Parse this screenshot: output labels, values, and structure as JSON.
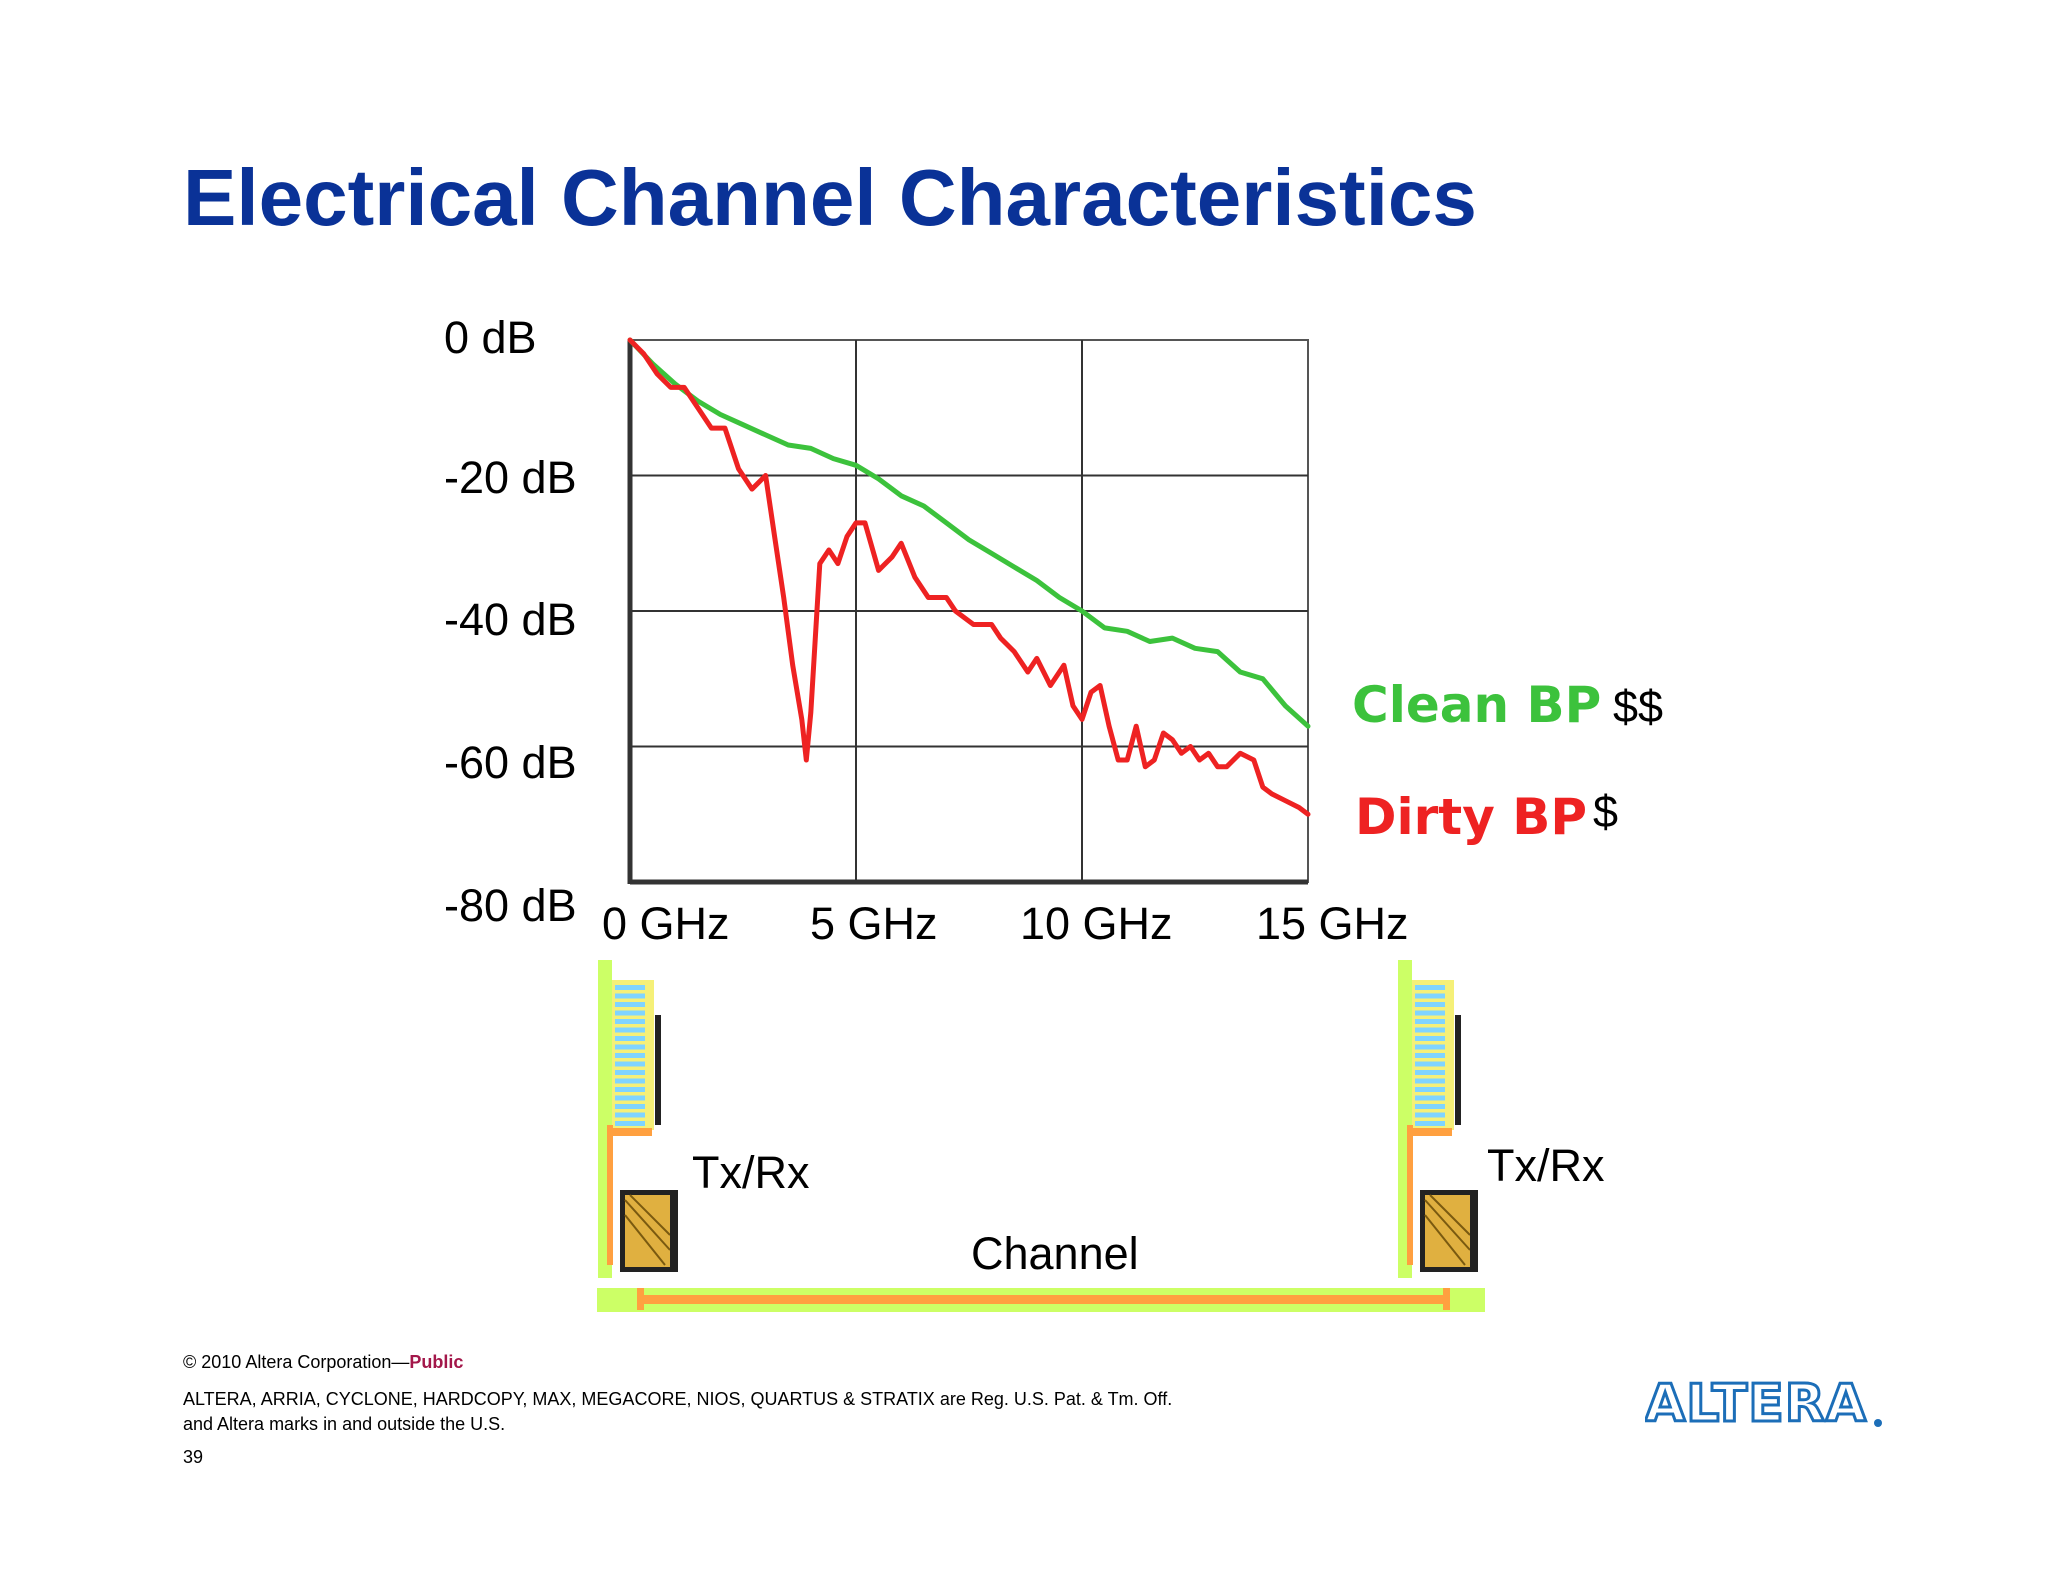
{
  "slide": {
    "title": "Electrical Channel Characteristics",
    "page_number": "39"
  },
  "chart_data": {
    "type": "line",
    "title": "",
    "xlabel": "",
    "ylabel": "",
    "x_unit": "GHz",
    "y_unit": "dB",
    "xlim": [
      0,
      15
    ],
    "ylim": [
      -80,
      0
    ],
    "x_ticks": [
      0,
      5,
      10,
      15
    ],
    "y_ticks": [
      0,
      -20,
      -40,
      -60,
      -80
    ],
    "x_tick_labels": [
      "0 GHz",
      "5 GHz",
      "10 GHz",
      "15 GHz"
    ],
    "y_tick_labels": [
      "0 dB",
      "-20 dB",
      "-40 dB",
      "-60 dB",
      "-80 dB"
    ],
    "grid": true,
    "legend_position": "right",
    "series": [
      {
        "name": "Clean BP",
        "annotation": "$$",
        "color": "#3cc23c",
        "x": [
          0,
          0.5,
          1,
          1.5,
          2,
          2.5,
          3,
          3.5,
          4,
          4.5,
          5,
          5.5,
          6,
          6.5,
          7,
          7.5,
          8,
          8.5,
          9,
          9.5,
          10,
          10.5,
          11,
          11.5,
          12,
          12.5,
          13,
          13.5,
          14,
          14.5,
          15
        ],
        "y": [
          0,
          -3.5,
          -6.5,
          -9,
          -11,
          -12.5,
          -14,
          -15.5,
          -16,
          -17.5,
          -18.5,
          -20.5,
          -23,
          -24.5,
          -27,
          -29.5,
          -31.5,
          -33.5,
          -35.5,
          -38,
          -40,
          -42.5,
          -43,
          -44.5,
          -44,
          -45.5,
          -46,
          -49,
          -50,
          -54,
          -57
        ]
      },
      {
        "name": "Dirty BP",
        "annotation": "$",
        "color": "#ee2222",
        "x": [
          0,
          0.3,
          0.6,
          0.9,
          1.2,
          1.5,
          1.8,
          2.1,
          2.4,
          2.7,
          3.0,
          3.2,
          3.4,
          3.6,
          3.8,
          3.9,
          4.0,
          4.1,
          4.2,
          4.4,
          4.6,
          4.8,
          5.0,
          5.2,
          5.5,
          5.8,
          6.0,
          6.3,
          6.6,
          7.0,
          7.2,
          7.6,
          8.0,
          8.2,
          8.5,
          8.8,
          9.0,
          9.3,
          9.6,
          9.8,
          10.0,
          10.2,
          10.4,
          10.6,
          10.8,
          11.0,
          11.2,
          11.4,
          11.6,
          11.8,
          12.0,
          12.2,
          12.4,
          12.6,
          12.8,
          13.0,
          13.2,
          13.5,
          13.8,
          14.0,
          14.2,
          14.5,
          14.8,
          15
        ],
        "y": [
          0,
          -2,
          -5,
          -7,
          -7,
          -10,
          -13,
          -13,
          -19,
          -22,
          -20,
          -29,
          -38,
          -48,
          -56,
          -62,
          -55,
          -44,
          -33,
          -31,
          -33,
          -29,
          -27,
          -27,
          -34,
          -32,
          -30,
          -35,
          -38,
          -38,
          -40,
          -42,
          -42,
          -44,
          -46,
          -49,
          -47,
          -51,
          -48,
          -54,
          -56,
          -52,
          -51,
          -57,
          -62,
          -62,
          -57,
          -63,
          -62,
          -58,
          -59,
          -61,
          -60,
          -62,
          -61,
          -63,
          -63,
          -61,
          -62,
          -66,
          -67,
          -68,
          -69,
          -70
        ]
      }
    ]
  },
  "diagram": {
    "left_label": "Tx/Rx",
    "right_label": "Tx/Rx",
    "channel_label": "Channel",
    "colors": {
      "board": "#ccff66",
      "trace": "#ffa040",
      "connector": "#7fd4ff",
      "chip": "#e0b040"
    }
  },
  "footer": {
    "copyright": "© 2010 Altera Corporation—",
    "classification": "Public",
    "trademark_line1": "ALTERA, ARRIA, CYCLONE, HARDCOPY, MAX, MEGACORE, NIOS, QUARTUS & STRATIX are Reg. U.S. Pat. & Tm. Off.",
    "trademark_line2": "and Altera marks in and outside the U.S."
  },
  "logo": {
    "text": "ALTERA",
    "color": "#1c6eb8"
  },
  "colors": {
    "title": "#0a3297",
    "public": "#a3174a"
  }
}
